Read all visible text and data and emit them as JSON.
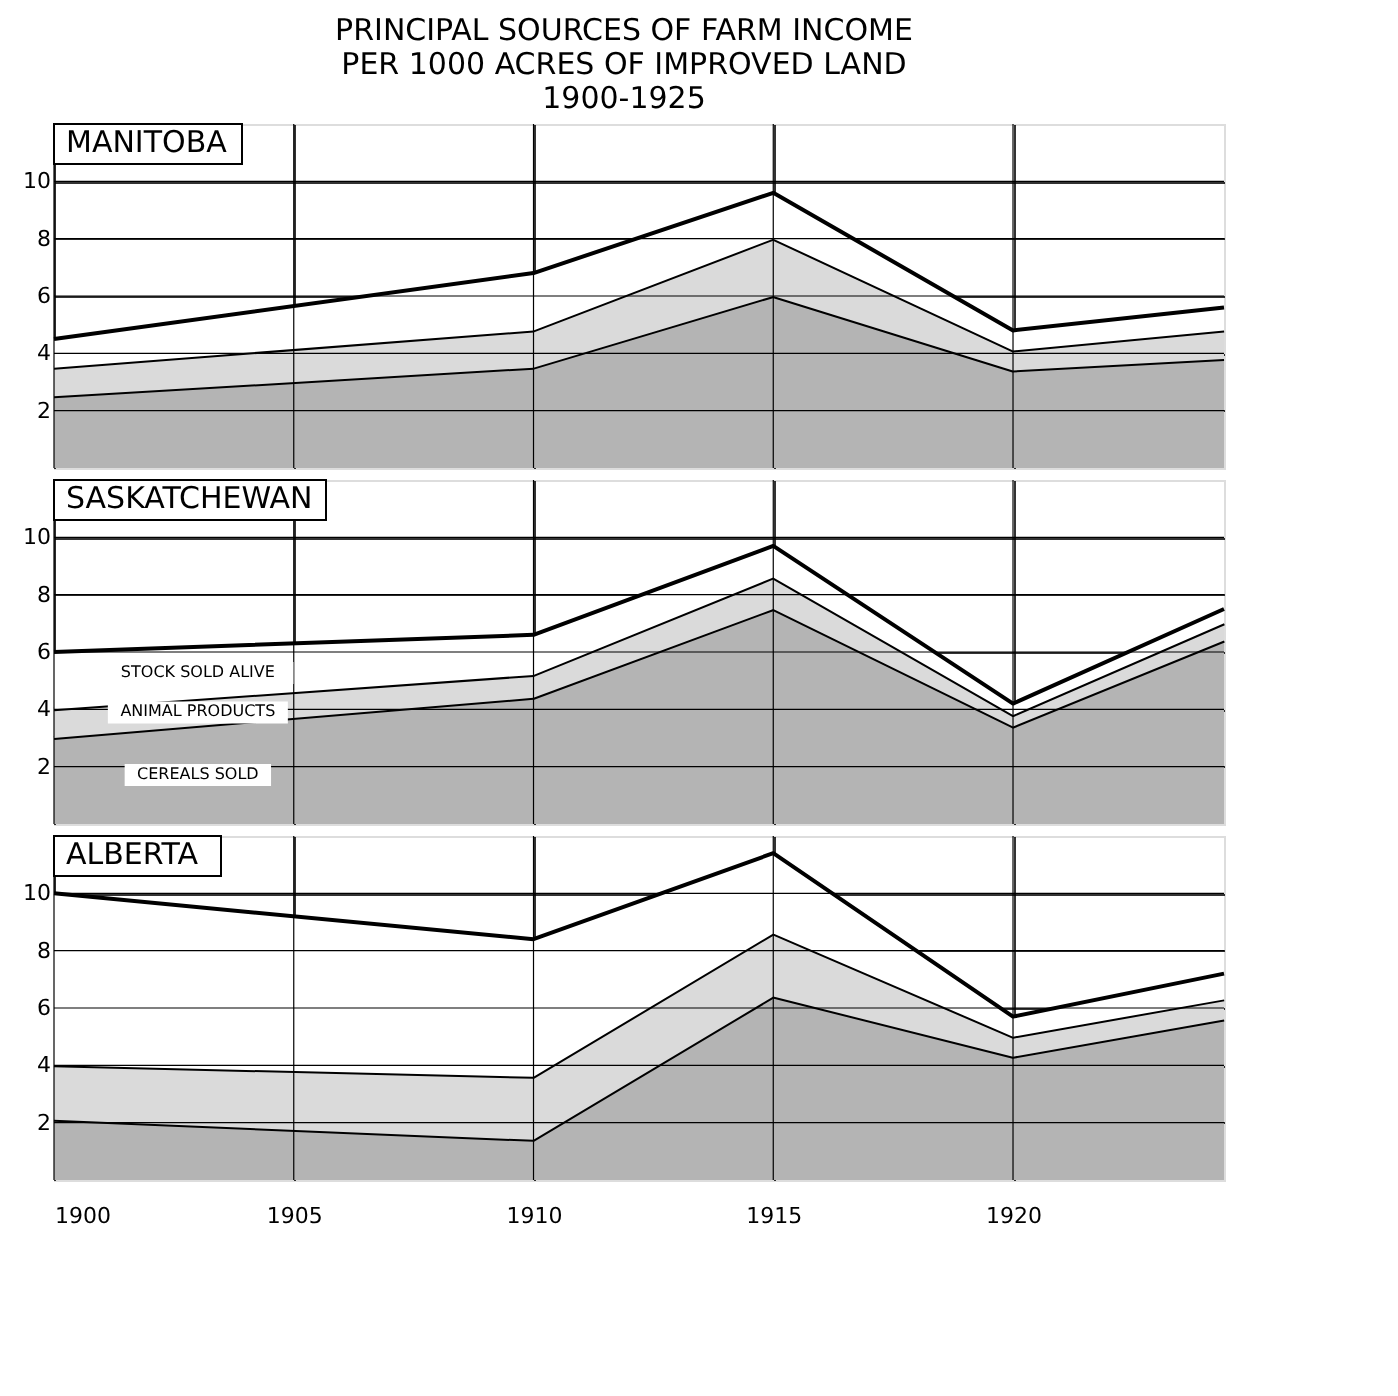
{
  "chart_data": [
    {
      "type": "area",
      "stacked": true,
      "title": "MANITOBA",
      "annotations": [
        "PRINCIPAL SOURCES OF FARM INCOME",
        "PER 1000 ACRES OF IMPROVED LAND",
        "1900-1925"
      ],
      "x": [
        1900,
        1910,
        1915,
        1920,
        1924.4
      ],
      "xlim": [
        1900,
        1924.4
      ],
      "xticks": [
        1900,
        1905,
        1910,
        1915,
        1920
      ],
      "ylim": [
        0,
        12
      ],
      "yticks": [
        2,
        4,
        6,
        8,
        10
      ],
      "grid": true,
      "tick_labels": "y",
      "series": [
        {
          "color": "#b4b4b4",
          "values": [
            2.5,
            3.5,
            6.0,
            3.4,
            3.8
          ]
        },
        {
          "color": "#dadada",
          "values": [
            1.0,
            1.3,
            2.0,
            0.7,
            1.0
          ]
        },
        {
          "color": "#ffffff",
          "values": [
            1.0,
            2.0,
            1.6,
            0.7,
            0.8
          ]
        }
      ]
    },
    {
      "type": "area",
      "stacked": true,
      "title": "SASKATCHEWAN",
      "x": [
        1900,
        1910,
        1915,
        1920,
        1924.4
      ],
      "xlim": [
        1900,
        1924.4
      ],
      "xticks": [
        1900,
        1905,
        1910,
        1915,
        1920
      ],
      "ylim": [
        0,
        12
      ],
      "yticks": [
        2,
        4,
        6,
        8,
        10
      ],
      "grid": true,
      "tick_labels": "y",
      "series": [
        {
          "name": "CEREALS SOLD",
          "color": "#b4b4b4",
          "values": [
            3.0,
            4.4,
            7.5,
            3.4,
            6.4
          ]
        },
        {
          "name": "ANIMAL PRODUCTS",
          "color": "#dadada",
          "values": [
            1.0,
            0.8,
            1.1,
            0.4,
            0.6
          ]
        },
        {
          "name": "STOCK SOLD ALIVE",
          "color": "#ffffff",
          "values": [
            2.0,
            1.4,
            1.1,
            0.4,
            0.5
          ]
        }
      ]
    },
    {
      "type": "area",
      "stacked": true,
      "title": "ALBERTA",
      "x": [
        1900,
        1910,
        1915,
        1920,
        1924.4
      ],
      "xlim": [
        1900,
        1924.4
      ],
      "xticks": [
        1900,
        1905,
        1910,
        1915,
        1920
      ],
      "ylim": [
        0,
        12
      ],
      "yticks": [
        2,
        4,
        6,
        8,
        10
      ],
      "grid": true,
      "series": [
        {
          "color": "#b4b4b4",
          "values": [
            2.1,
            1.4,
            6.4,
            4.3,
            5.6
          ]
        },
        {
          "color": "#dadada",
          "values": [
            1.9,
            2.2,
            2.2,
            0.7,
            0.7
          ]
        },
        {
          "color": "#ffffff",
          "values": [
            6.0,
            4.8,
            2.8,
            0.7,
            0.9
          ]
        }
      ]
    }
  ]
}
